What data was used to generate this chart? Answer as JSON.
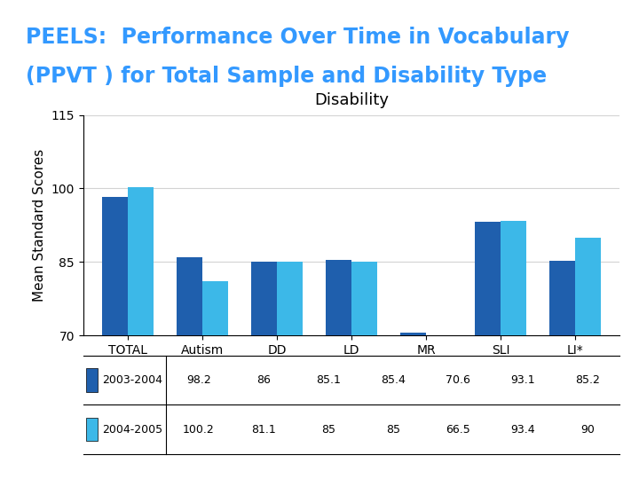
{
  "title_line1": "PEELS:  Performance Over Time in Vocabulary",
  "title_line2": "(PPVT ) for Total Sample and Disability Type",
  "chart_title": "Disability",
  "ylabel": "Mean Standard Scores",
  "categories": [
    "TOTAL",
    "Autism",
    "DD",
    "LD",
    "MR",
    "SLI",
    "LI*"
  ],
  "series": [
    {
      "label": "2003-2004",
      "values": [
        98.2,
        86.0,
        85.1,
        85.4,
        70.6,
        93.1,
        85.2
      ],
      "color": "#1F5FAD"
    },
    {
      "label": "2004-2005",
      "values": [
        100.2,
        81.1,
        85.0,
        85.0,
        66.5,
        93.4,
        90.0
      ],
      "color": "#3CB8E8"
    }
  ],
  "ylim": [
    70,
    115
  ],
  "yticks": [
    70,
    85,
    100,
    115
  ],
  "title_bg_color": "#000000",
  "title_text_color": "#3399FF",
  "chart_bg_color": "#FFFFFF",
  "table_data_2003": [
    98.2,
    86,
    85.1,
    85.4,
    70.6,
    93.1,
    85.2
  ],
  "table_data_2004": [
    100.2,
    81.1,
    85,
    85,
    66.5,
    93.4,
    90
  ],
  "bar_width": 0.35,
  "title_fontsize": 17,
  "chart_title_fontsize": 13,
  "axis_fontsize": 11,
  "tick_fontsize": 10,
  "table_fontsize": 9
}
